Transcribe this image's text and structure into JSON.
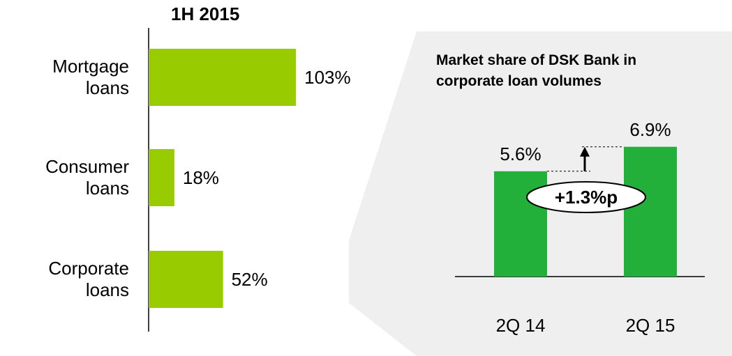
{
  "chart_data": [
    {
      "type": "hbar",
      "title": "1H 2015",
      "categories": [
        "Mortgage\nloans",
        "Consumer\nloans",
        "Corporate\nloans"
      ],
      "values": [
        103,
        18,
        52
      ],
      "value_labels": [
        "103%",
        "18%",
        "52%"
      ],
      "color": "#99cc00"
    },
    {
      "type": "bar",
      "title": "Market share of DSK Bank in corporate loan volumes",
      "categories": [
        "2Q 14",
        "2Q 15"
      ],
      "values": [
        5.6,
        6.9
      ],
      "value_labels": [
        "5.6%",
        "6.9%"
      ],
      "color": "#22b03a",
      "annotation": "+1.3%p"
    }
  ]
}
